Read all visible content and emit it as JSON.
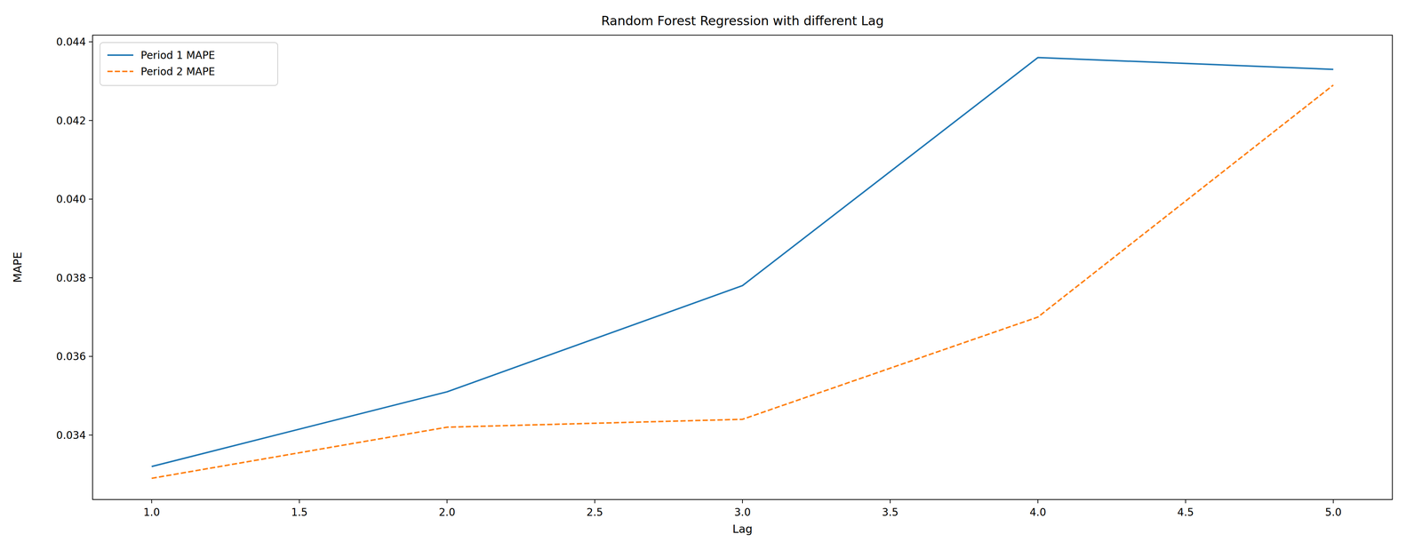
{
  "chart_data": {
    "type": "line",
    "title": "Random Forest Regression with different Lag",
    "x_label": "Lag",
    "y_label": "MAPE",
    "x": [
      1,
      2,
      3,
      4,
      5
    ],
    "series": [
      {
        "name": "Period 1 MAPE",
        "color": "#1f77b4",
        "line_style": "solid",
        "values": [
          0.0332,
          0.0351,
          0.0378,
          0.0436,
          0.0433
        ]
      },
      {
        "name": "Period 2 MAPE",
        "color": "#ff7f0e",
        "line_style": "dashed",
        "values": [
          0.0329,
          0.0342,
          0.0344,
          0.037,
          0.0429
        ]
      }
    ],
    "xlim": [
      0.8,
      5.2
    ],
    "xticks": [
      {
        "value": 1,
        "label": "1.0"
      },
      1.5,
      {
        "value": 2,
        "label": "2.0"
      },
      2.5,
      {
        "value": 3,
        "label": "3.0"
      },
      3.5,
      {
        "value": 4,
        "label": "4.0"
      },
      4.5,
      {
        "value": 5,
        "label": "5.0"
      }
    ],
    "ylim": [
      0.03236,
      0.04417
    ],
    "yticks": [
      0.034,
      0.036,
      0.038,
      {
        "value": 0.04,
        "label": "0.040"
      },
      0.042,
      0.044
    ],
    "grid": false,
    "legend": "upper left"
  }
}
